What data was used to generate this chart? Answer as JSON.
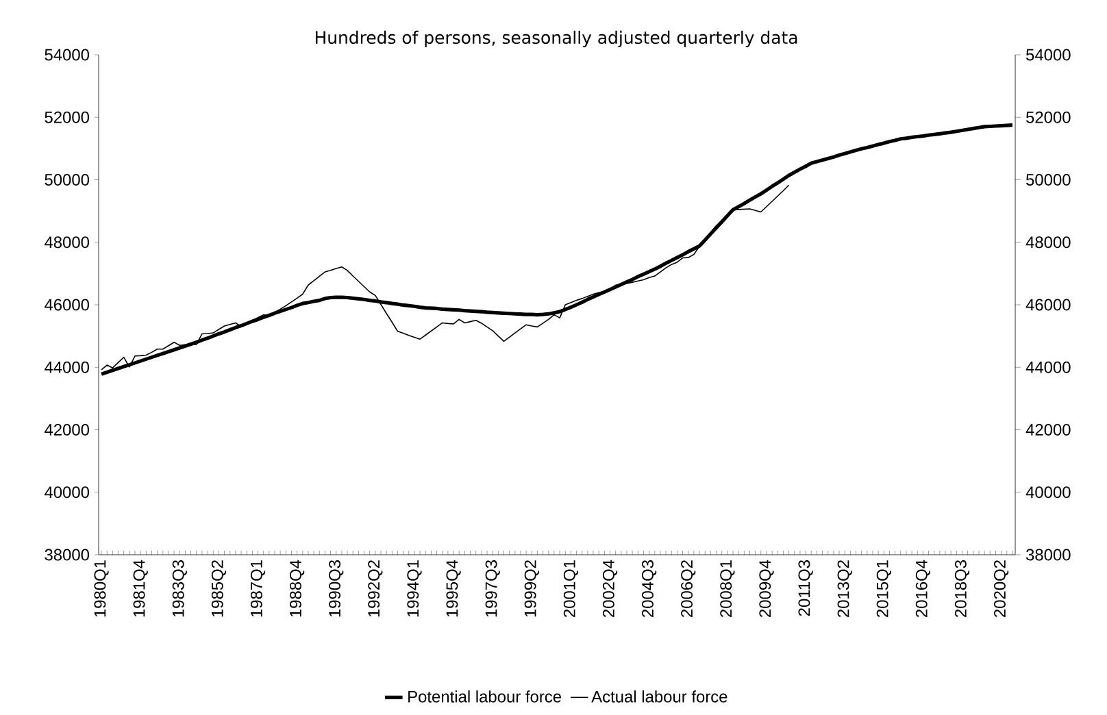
{
  "chart_data": {
    "type": "line",
    "title": "Hundreds of persons, seasonally adjusted quarterly data",
    "categories": [
      "1980Q1",
      null,
      null,
      null,
      null,
      null,
      null,
      "1981Q4",
      null,
      null,
      null,
      null,
      null,
      null,
      "1983Q3",
      null,
      null,
      null,
      null,
      null,
      null,
      "1985Q2",
      null,
      null,
      null,
      null,
      null,
      null,
      "1987Q1",
      null,
      null,
      null,
      null,
      null,
      null,
      "1988Q4",
      null,
      null,
      null,
      null,
      null,
      null,
      "1990Q3",
      null,
      null,
      null,
      null,
      null,
      null,
      "1992Q2",
      null,
      null,
      null,
      null,
      null,
      null,
      "1994Q1",
      null,
      null,
      null,
      null,
      null,
      null,
      "1995Q4",
      null,
      null,
      null,
      null,
      null,
      null,
      "1997Q3",
      null,
      null,
      null,
      null,
      null,
      null,
      "1999Q2",
      null,
      null,
      null,
      null,
      null,
      null,
      "2001Q1",
      null,
      null,
      null,
      null,
      null,
      null,
      "2002Q4",
      null,
      null,
      null,
      null,
      null,
      null,
      "2004Q3",
      null,
      null,
      null,
      null,
      null,
      null,
      "2006Q2",
      null,
      null,
      null,
      null,
      null,
      null,
      "2008Q1",
      null,
      null,
      null,
      null,
      null,
      null,
      "2009Q4",
      null,
      null,
      null,
      null,
      null,
      null,
      "2011Q3",
      null,
      null,
      null,
      null,
      null,
      null,
      "2013Q2",
      null,
      null,
      null,
      null,
      null,
      null,
      "2015Q1",
      null,
      null,
      null,
      null,
      null,
      null,
      "2016Q4",
      null,
      null,
      null,
      null,
      null,
      null,
      "2018Q3",
      null,
      null,
      null,
      null,
      null,
      null,
      "2020Q2",
      null,
      null
    ],
    "series": [
      {
        "name": "Potential labour force",
        "color": "#000000",
        "values": [
          43780,
          43840,
          43900,
          43960,
          44020,
          44080,
          44140,
          44200,
          44260,
          44320,
          44380,
          44440,
          44500,
          44560,
          44620,
          44680,
          44740,
          44800,
          44870,
          44930,
          45000,
          45070,
          45130,
          45200,
          45270,
          45330,
          45400,
          45470,
          45530,
          45600,
          45660,
          45730,
          45790,
          45850,
          45910,
          45980,
          46040,
          46070,
          46110,
          46140,
          46200,
          46230,
          46240,
          46240,
          46230,
          46210,
          46190,
          46170,
          46140,
          46120,
          46090,
          46070,
          46040,
          46020,
          45990,
          45970,
          45950,
          45920,
          45900,
          45890,
          45880,
          45860,
          45850,
          45840,
          45830,
          45810,
          45800,
          45790,
          45780,
          45760,
          45750,
          45740,
          45730,
          45720,
          45710,
          45700,
          45690,
          45690,
          45680,
          45690,
          45710,
          45740,
          45780,
          45850,
          45920,
          46000,
          46080,
          46170,
          46250,
          46330,
          46410,
          46490,
          46570,
          46650,
          46730,
          46810,
          46900,
          46980,
          47060,
          47140,
          47230,
          47330,
          47420,
          47510,
          47600,
          47700,
          47790,
          47880,
          48070,
          48270,
          48460,
          48650,
          48850,
          49040,
          49140,
          49240,
          49350,
          49450,
          49550,
          49670,
          49790,
          49900,
          50020,
          50140,
          50240,
          50340,
          50430,
          50530,
          50580,
          50630,
          50680,
          50730,
          50790,
          50840,
          50890,
          50940,
          50990,
          51030,
          51080,
          51130,
          51170,
          51220,
          51260,
          51310,
          51330,
          51360,
          51380,
          51400,
          51430,
          51450,
          51470,
          51500,
          51520,
          51550,
          51580,
          51610,
          51640,
          51670,
          51700,
          51710,
          51720,
          51730,
          51740,
          51750
        ]
      },
      {
        "name": "Actual labour force",
        "color": "#000000",
        "values": [
          43920,
          44070,
          43980,
          44150,
          44320,
          44010,
          44360,
          44370,
          44390,
          44480,
          44580,
          44580,
          44690,
          44800,
          44700,
          44720,
          44720,
          44730,
          45070,
          45080,
          45100,
          45210,
          45320,
          45370,
          45420,
          45300,
          45400,
          45500,
          45590,
          45680,
          45650,
          45760,
          45860,
          45970,
          46090,
          46210,
          46340,
          46630,
          46770,
          46910,
          47050,
          47100,
          47160,
          47210,
          47100,
          46920,
          46750,
          46580,
          46410,
          46300,
          46010,
          45720,
          45440,
          45150,
          45090,
          45020,
          44960,
          44900,
          45030,
          45160,
          45290,
          45420,
          45400,
          45390,
          45530,
          45420,
          45460,
          45500,
          45410,
          45290,
          45170,
          45000,
          44830,
          44960,
          45100,
          45230,
          45360,
          45320,
          45290,
          45410,
          45530,
          45680,
          45580,
          46000,
          46070,
          46140,
          46200,
          46270,
          46340,
          46390,
          46430,
          46480,
          46630,
          46650,
          46680,
          46720,
          46760,
          46800,
          46870,
          46920,
          47050,
          47180,
          47290,
          47360,
          47500,
          47510,
          47610,
          47870,
          48090,
          48310,
          48530,
          48700,
          48870,
          49040,
          49050,
          49060,
          49070,
          49020,
          48970,
          49140,
          49310,
          49480,
          49650,
          49830,
          null,
          null,
          null,
          null,
          null,
          null,
          null,
          null,
          null,
          null,
          null,
          null,
          null,
          null,
          null,
          null,
          null,
          null,
          null,
          null,
          null,
          null,
          null,
          null,
          null,
          null,
          null,
          null,
          null,
          null,
          null,
          null,
          null,
          null,
          null,
          null,
          null,
          null,
          null,
          null
        ]
      }
    ],
    "ylim": [
      38000,
      54000
    ],
    "yticks": [
      38000,
      40000,
      42000,
      44000,
      46000,
      48000,
      50000,
      52000,
      54000
    ],
    "y2lim": [
      38000,
      54000
    ],
    "y2ticks": [
      38000,
      40000,
      42000,
      44000,
      46000,
      48000,
      50000,
      52000,
      54000
    ],
    "legend": "bottom"
  }
}
